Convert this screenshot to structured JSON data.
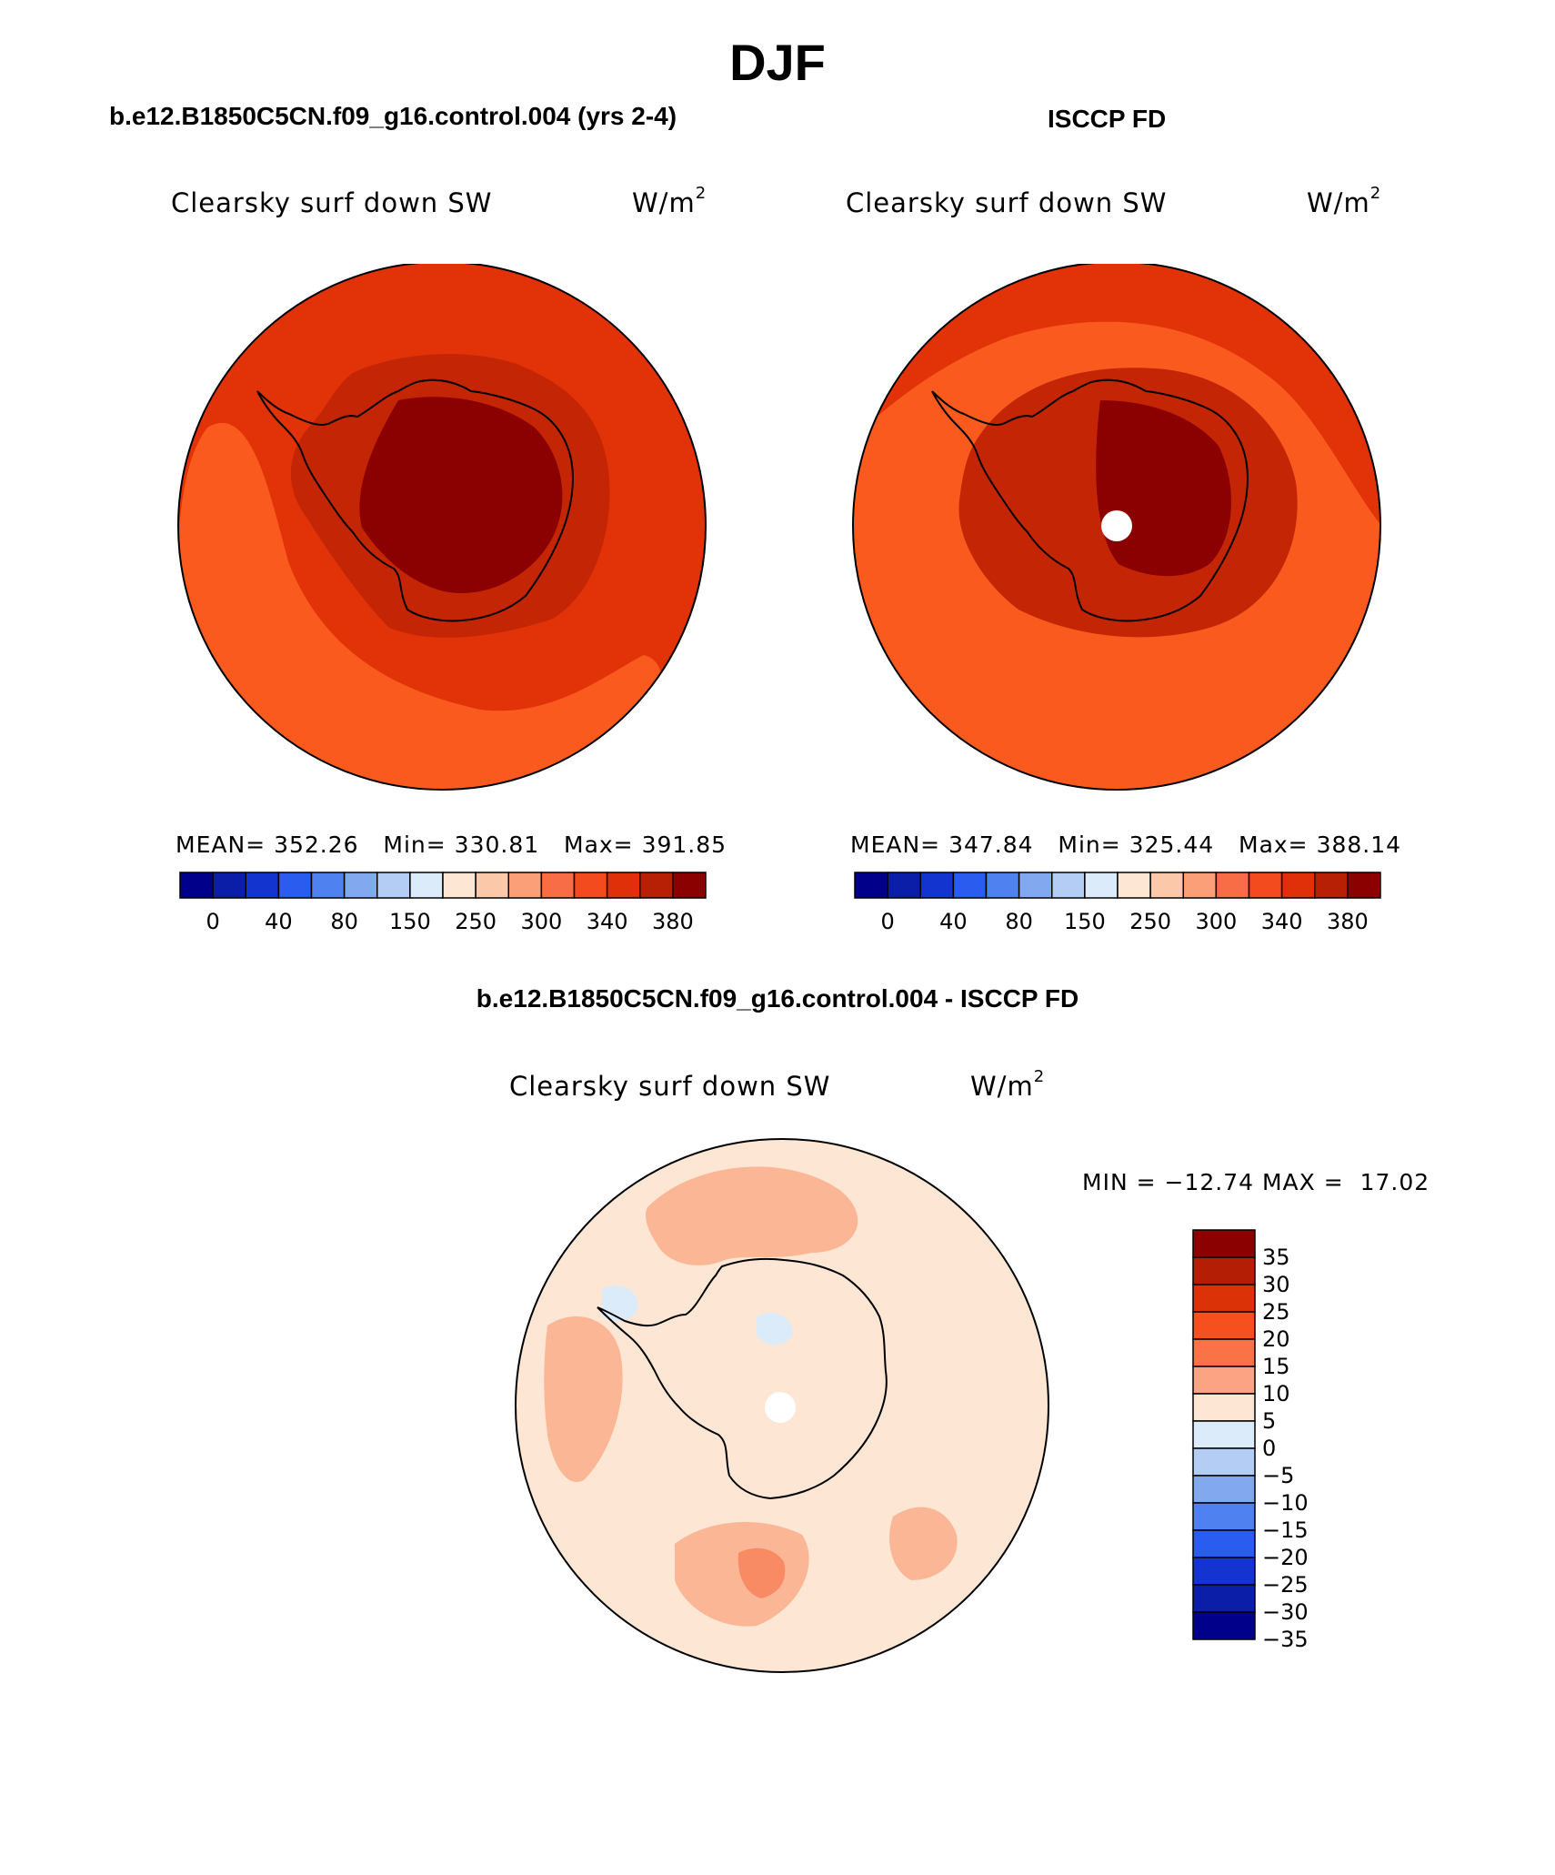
{
  "title": "DJF",
  "panels": [
    {
      "case": "b.e12.B1850C5CN.f09_g16.control.004 (yrs 2-4)",
      "variable": "Clearsky surf down SW",
      "units": "W/m",
      "units_exp": "2",
      "stats": {
        "mean_label": "MEAN=",
        "mean": "352.26",
        "min_label": "Min=",
        "min": "330.81",
        "max_label": "Max=",
        "max": "391.85"
      }
    },
    {
      "case": "ISCCP FD",
      "variable": "Clearsky surf down SW",
      "units": "W/m",
      "units_exp": "2",
      "stats": {
        "mean_label": "MEAN=",
        "mean": "347.84",
        "min_label": "Min=",
        "min": "325.44",
        "max_label": "Max=",
        "max": "388.14"
      }
    }
  ],
  "colorbar_top": {
    "colors": [
      "#00008b",
      "#0a1ea8",
      "#1434d0",
      "#2a5cf0",
      "#4f82f0",
      "#82a8f0",
      "#b4cdf5",
      "#dcebfa",
      "#fde6d4",
      "#fcc8aa",
      "#fa9f78",
      "#f96d46",
      "#f34b1e",
      "#e0300a",
      "#b82005",
      "#8b0000"
    ],
    "ticks": [
      "0",
      "40",
      "80",
      "150",
      "250",
      "300",
      "340",
      "380"
    ]
  },
  "difference": {
    "case": "b.e12.B1850C5CN.f09_g16.control.004 - ISCCP FD",
    "variable": "Clearsky surf down SW",
    "units": "W/m",
    "units_exp": "2",
    "min_label": "MIN =",
    "min": "−12.74",
    "max_label": "MAX =",
    "max": "17.02"
  },
  "colorbar_diff": {
    "colors": [
      "#8b0000",
      "#b41e05",
      "#dc3208",
      "#f5501e",
      "#fa7346",
      "#fba382",
      "#fde6d4",
      "#dcebfa",
      "#b4cdf5",
      "#82a8f0",
      "#4f82f0",
      "#2a5cf0",
      "#1434d0",
      "#0a1ea8",
      "#00008b"
    ],
    "ticks": [
      "35",
      "30",
      "25",
      "20",
      "15",
      "10",
      "5",
      "0",
      "−5",
      "−10",
      "−15",
      "−20",
      "−25",
      "−30",
      "−35"
    ]
  },
  "map_colors": {
    "ocean_top": "#e13208",
    "ocean_low": "#fa5a1e",
    "coast_band": "#c42505",
    "interior": "#8b0000",
    "diff_base": "#fde6d4",
    "diff_pos": "#fbb696",
    "diff_pos_strong": "#f88a64",
    "diff_neg": "#dcebfa"
  }
}
